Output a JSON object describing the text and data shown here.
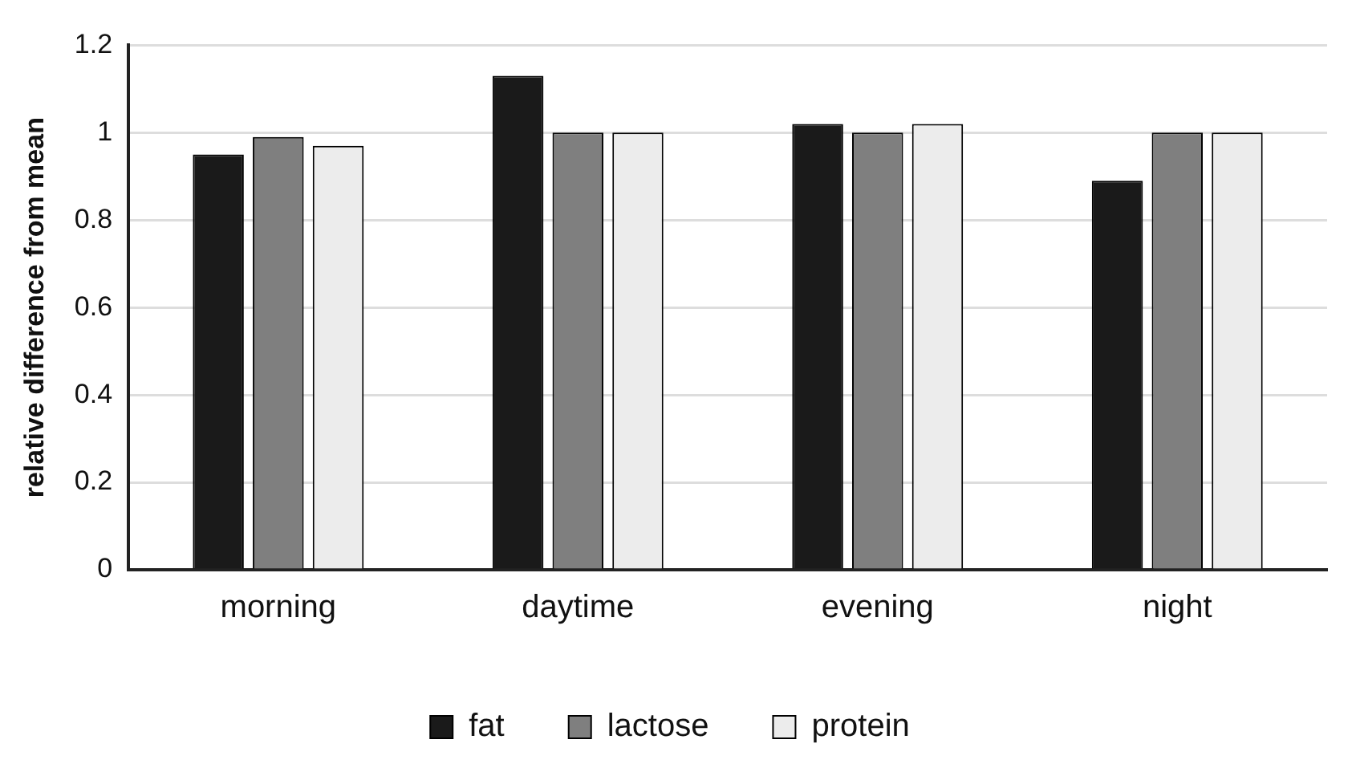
{
  "chart_data": {
    "type": "bar",
    "ylabel": "relative difference from mean",
    "categories": [
      "morning",
      "daytime",
      "evening",
      "night"
    ],
    "series": [
      {
        "name": "fat",
        "color": "#1a1a1a",
        "values": [
          0.95,
          1.13,
          1.02,
          0.89
        ]
      },
      {
        "name": "lactose",
        "color": "#7f7f7f",
        "values": [
          0.99,
          1.0,
          1.0,
          1.0
        ]
      },
      {
        "name": "protein",
        "color": "#ececec",
        "values": [
          0.97,
          1.0,
          1.02,
          1.0
        ]
      }
    ],
    "ylim": [
      0,
      1.2
    ],
    "yticks": [
      0,
      0.2,
      0.4,
      0.6,
      0.8,
      1,
      1.2
    ],
    "grid": "y",
    "legend": "bottom"
  }
}
